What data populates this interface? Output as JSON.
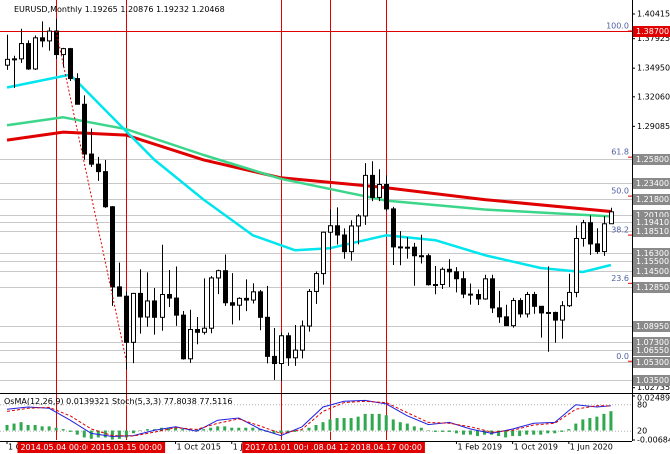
{
  "chart_data": {
    "type": "candlestick",
    "symbol": "EURUSD,Monthly",
    "x": [
      "2013-10",
      "2013-11",
      "2013-12",
      "2014-01",
      "2014-02",
      "2014-03",
      "2014-04",
      "2014-05",
      "2014-06",
      "2014-07",
      "2014-08",
      "2014-09",
      "2014-10",
      "2014-11",
      "2014-12",
      "2015-01",
      "2015-02",
      "2015-03",
      "2015-04",
      "2015-05",
      "2015-06",
      "2015-07",
      "2015-08",
      "2015-09",
      "2015-10",
      "2015-11",
      "2015-12",
      "2016-01",
      "2016-02",
      "2016-03",
      "2016-04",
      "2016-05",
      "2016-06",
      "2016-07",
      "2016-08",
      "2016-09",
      "2016-10",
      "2016-11",
      "2016-12",
      "2017-01",
      "2017-02",
      "2017-03",
      "2017-04",
      "2017-05",
      "2017-06",
      "2017-07",
      "2017-08",
      "2017-09",
      "2017-10",
      "2017-11",
      "2017-12",
      "2018-01",
      "2018-02",
      "2018-03",
      "2018-04",
      "2018-05",
      "2018-06",
      "2018-07",
      "2018-08",
      "2018-09",
      "2018-10",
      "2018-11",
      "2018-12",
      "2019-01",
      "2019-02",
      "2019-03",
      "2019-04",
      "2019-05",
      "2019-06",
      "2019-07",
      "2019-08",
      "2019-09",
      "2019-10",
      "2019-11",
      "2019-12",
      "2020-01",
      "2020-02",
      "2020-03",
      "2020-04",
      "2020-05",
      "2020-06",
      "2020-07",
      "2020-08",
      "2020-09",
      "2020-10",
      "2020-11",
      "2020-12"
    ],
    "candles": {
      "open": [
        1.3525,
        1.3584,
        1.3589,
        1.3743,
        1.3487,
        1.3801,
        1.377,
        1.3869,
        1.3632,
        1.3692,
        1.339,
        1.3131,
        1.2629,
        1.2527,
        1.2452,
        1.2098,
        1.129,
        1.1196,
        1.0731,
        1.1224,
        1.0986,
        1.1148,
        1.0983,
        1.1213,
        1.1177,
        1.1005,
        1.0565,
        1.086,
        1.0832,
        1.0873,
        1.138,
        1.1453,
        1.113,
        1.1105,
        1.1174,
        1.1157,
        1.124,
        1.0983,
        1.0589,
        1.0517,
        1.0797,
        1.0575,
        1.0652,
        1.0895,
        1.1244,
        1.1424,
        1.1841,
        1.1906,
        1.1813,
        1.1645,
        1.1904,
        1.2005,
        1.2414,
        1.2192,
        1.2322,
        1.2076,
        1.1693,
        1.1683,
        1.169,
        1.1604,
        1.1604,
        1.1312,
        1.1314,
        1.1467,
        1.1442,
        1.1372,
        1.1217,
        1.1213,
        1.1168,
        1.1371,
        1.1078,
        1.0988,
        1.0899,
        1.1152,
        1.1017,
        1.1213,
        1.1094,
        1.1027,
        1.1032,
        1.0955,
        1.11,
        1.1234,
        1.1778,
        1.1937,
        1.1723,
        1.1646,
        1.19265
      ],
      "high": [
        1.3832,
        1.362,
        1.3893,
        1.3775,
        1.3824,
        1.3967,
        1.3906,
        1.3993,
        1.37,
        1.37,
        1.3444,
        1.3221,
        1.2887,
        1.26,
        1.257,
        1.2104,
        1.1534,
        1.1244,
        1.1229,
        1.1467,
        1.1436,
        1.1278,
        1.1714,
        1.146,
        1.1495,
        1.1047,
        1.1059,
        1.0986,
        1.1376,
        1.1398,
        1.1464,
        1.1616,
        1.1428,
        1.1185,
        1.1366,
        1.1327,
        1.1258,
        1.13,
        1.0875,
        1.0829,
        1.0829,
        1.0906,
        1.0951,
        1.1268,
        1.1445,
        1.1846,
        1.207,
        1.2092,
        1.188,
        1.1961,
        1.2023,
        1.2537,
        1.2556,
        1.2476,
        1.2414,
        1.2097,
        1.1852,
        1.1791,
        1.1734,
        1.1815,
        1.1625,
        1.15,
        1.1486,
        1.157,
        1.1489,
        1.1448,
        1.1324,
        1.1264,
        1.1412,
        1.1412,
        1.125,
        1.111,
        1.1179,
        1.1176,
        1.1239,
        1.1239,
        1.1095,
        1.1496,
        1.104,
        1.1146,
        1.1422,
        1.1909,
        1.1966,
        1.2011,
        1.1881,
        1.2004,
        1.20876
      ],
      "low": [
        1.3478,
        1.3296,
        1.3548,
        1.3478,
        1.3477,
        1.3706,
        1.3672,
        1.3588,
        1.3503,
        1.3366,
        1.3131,
        1.2571,
        1.25,
        1.2358,
        1.2087,
        1.1098,
        1.1262,
        1.0458,
        1.0521,
        1.0819,
        1.0888,
        1.0809,
        1.0847,
        1.1087,
        1.0897,
        1.0557,
        1.0524,
        1.0711,
        1.081,
        1.0822,
        1.1217,
        1.1098,
        1.0912,
        1.0952,
        1.1046,
        1.1122,
        1.0852,
        1.0518,
        1.0352,
        1.0341,
        1.0494,
        1.0494,
        1.0569,
        1.0839,
        1.1119,
        1.1312,
        1.1662,
        1.1717,
        1.1574,
        1.1554,
        1.1718,
        1.1915,
        1.2154,
        1.2155,
        1.2055,
        1.151,
        1.1508,
        1.1575,
        1.1301,
        1.1526,
        1.1302,
        1.1216,
        1.1269,
        1.1289,
        1.1234,
        1.1176,
        1.1111,
        1.1107,
        1.116,
        1.1027,
        1.0927,
        1.0905,
        1.0879,
        1.0981,
        1.0981,
        1.1019,
        1.0778,
        1.0636,
        1.0727,
        1.0767,
        1.1087,
        1.1185,
        1.1696,
        1.1612,
        1.1622,
        1.1603,
        1.19232
      ],
      "close": [
        1.3584,
        1.3589,
        1.3743,
        1.3487,
        1.3801,
        1.377,
        1.3869,
        1.3632,
        1.3692,
        1.339,
        1.3131,
        1.2629,
        1.2527,
        1.2452,
        1.2098,
        1.129,
        1.1196,
        1.0731,
        1.1224,
        1.0986,
        1.1148,
        1.0983,
        1.1213,
        1.1177,
        1.1005,
        1.0565,
        1.086,
        1.0832,
        1.0873,
        1.138,
        1.1453,
        1.113,
        1.1105,
        1.1174,
        1.1157,
        1.124,
        1.0983,
        1.0589,
        1.0517,
        1.0797,
        1.0575,
        1.0652,
        1.0895,
        1.1244,
        1.1424,
        1.1841,
        1.1906,
        1.1813,
        1.1645,
        1.1904,
        1.2005,
        1.2414,
        1.2192,
        1.2322,
        1.2076,
        1.1693,
        1.1683,
        1.169,
        1.1604,
        1.1604,
        1.1312,
        1.1314,
        1.1467,
        1.1442,
        1.1372,
        1.1217,
        1.1213,
        1.1168,
        1.1371,
        1.1078,
        1.0988,
        1.0899,
        1.1152,
        1.1017,
        1.1213,
        1.1094,
        1.1027,
        1.1032,
        1.0955,
        1.11,
        1.1234,
        1.1778,
        1.1937,
        1.1723,
        1.1646,
        1.1926,
        1.20468
      ]
    },
    "bull_color": "#ffffff",
    "bear_color": "#000000",
    "ylim": [
      1.023,
      1.4152
    ],
    "yticks": [
      1.40415,
      1.37925,
      {
        "value": 1.3495,
        "label": "1.34950"
      },
      {
        "value": 1.3206,
        "label": "1.32060"
      },
      1.29085,
      1.02735
    ],
    "xlim": [
      "2013-09",
      "2021-03"
    ],
    "xticks": [
      {
        "value": "2013-10",
        "label": "1 O"
      },
      {
        "value": "2015-10",
        "label": "1 Oct 2015"
      },
      {
        "value": "2016-06",
        "label": "1 J"
      },
      {
        "value": "2018-06",
        "label": "2018"
      },
      {
        "value": "2019-02",
        "label": "1 Feb 2019"
      },
      {
        "value": "2019-10",
        "label": "1 Oct 2019"
      },
      {
        "value": "2020-06",
        "label": "1 Jun 2020"
      }
    ],
    "levels": [
      {
        "value": 1.387,
        "label": "1.38700",
        "color": "#e00000"
      },
      {
        "value": 1.258,
        "label": "1.25800",
        "color": "#8a8a8a"
      },
      {
        "value": 1.234,
        "label": "1.23400",
        "color": "#8a8a8a"
      },
      {
        "value": 1.218,
        "label": "1.21800",
        "color": "#8a8a8a"
      },
      {
        "value": 1.201,
        "label": "1.20100",
        "color": "#8a8a8a"
      },
      {
        "value": 1.1941,
        "label": "1.19410",
        "color": "#8a8a8a"
      },
      {
        "value": 1.1851,
        "label": "1.18510",
        "color": "#8a8a8a"
      },
      {
        "value": 1.163,
        "label": "1.16300",
        "color": "#8a8a8a"
      },
      {
        "value": 1.155,
        "label": "1.15500",
        "color": "#8a8a8a"
      },
      {
        "value": 1.145,
        "label": "1.14500",
        "color": "#8a8a8a"
      },
      {
        "value": 1.1285,
        "label": "1.12850",
        "color": "#8a8a8a"
      },
      {
        "value": 1.0895,
        "label": "1.08950",
        "color": "#8a8a8a"
      },
      {
        "value": 1.073,
        "label": "1.07300",
        "color": "#8a8a8a"
      },
      {
        "value": 1.0655,
        "label": "1.06550",
        "color": "#8a8a8a"
      },
      {
        "value": 1.053,
        "label": "1.05300",
        "color": "#8a8a8a"
      },
      {
        "value": 1.035,
        "label": "1.03500",
        "color": "#8a8a8a"
      }
    ],
    "fibonacci": {
      "from": 1.054,
      "to": 1.387,
      "start": "2014-05",
      "end": "2015-03",
      "color": "#e00000",
      "levels": [
        {
          "value": 100,
          "label": "100.0"
        },
        61.8,
        {
          "value": 50,
          "label": "50.0"
        },
        38.2,
        23.6,
        {
          "value": 0,
          "label": "0.0"
        }
      ]
    },
    "vlines": [
      {
        "value": "2014-05",
        "label": "2014.05.04 00:00"
      },
      {
        "value": "2015-03",
        "label": "2015.03.15 00:00"
      },
      {
        "value": "2017-01",
        "label": "2017.01.01 00:00"
      },
      {
        "value": "2017-08",
        "label": ".08.04 12"
      },
      {
        "value": "2018-04",
        "label": "2018.04.17 00:00"
      }
    ],
    "vline_color": "#e00000",
    "moving_averages": [
      {
        "color": "#e00000",
        "width": 3,
        "x": [
          "2013-10",
          "2014-06",
          "2015-03",
          "2016-02",
          "2017-01",
          "2018-04",
          "2019-06",
          "2020-12"
        ],
        "values": [
          1.277,
          1.285,
          1.282,
          1.257,
          1.239,
          1.229,
          1.217,
          1.205
        ]
      },
      {
        "color": "#3cd68a",
        "width": 2.5,
        "x": [
          "2013-10",
          "2014-06",
          "2015-03",
          "2016-02",
          "2017-01",
          "2018-04",
          "2019-06",
          "2020-12"
        ],
        "values": [
          1.292,
          1.3,
          1.288,
          1.262,
          1.238,
          1.216,
          1.207,
          1.2
        ]
      },
      {
        "color": "#00e5ee",
        "width": 2.5,
        "x": [
          "2013-10",
          "2014-07",
          "2015-07",
          "2016-02",
          "2016-09",
          "2017-03",
          "2017-08",
          "2018-04",
          "2018-11",
          "2019-06",
          "2020-02",
          "2020-08",
          "2020-12"
        ],
        "values": [
          1.33,
          1.343,
          1.257,
          1.217,
          1.181,
          1.166,
          1.168,
          1.181,
          1.176,
          1.161,
          1.148,
          1.144,
          1.151
        ]
      }
    ],
    "oscillator": {
      "osma_name": "OsMA(12,26,9)",
      "osma_color": "#2fa84f",
      "osma": [
        0.004,
        0.005,
        0.006,
        0.004,
        0.004,
        0.003,
        0.003,
        0.002,
        0.001,
        -0.001,
        -0.003,
        -0.005,
        -0.006,
        -0.005,
        -0.005,
        -0.0065,
        -0.006,
        -0.005,
        -0.002,
        0,
        0.001,
        0.001,
        0.002,
        0.002,
        0.002,
        0.001,
        0.001,
        0.001,
        0.001,
        0.002,
        0.003,
        0.003,
        0.002,
        0.002,
        0.002,
        0.002,
        0.001,
        -0.001,
        -0.002,
        -0.002,
        -0.002,
        -0.001,
        0,
        0.002,
        0.004,
        0.006,
        0.008,
        0.009,
        0.009,
        0.009,
        0.01,
        0.012,
        0.012,
        0.012,
        0.011,
        0.008,
        0.006,
        0.005,
        0.003,
        0.002,
        0,
        -0.001,
        -0.001,
        -0.001,
        -0.002,
        -0.003,
        -0.003,
        -0.004,
        -0.003,
        -0.003,
        -0.004,
        -0.005,
        -0.004,
        -0.004,
        -0.003,
        -0.003,
        -0.003,
        -0.002,
        -0.002,
        -0.001,
        0.001,
        0.005,
        0.008,
        0.009,
        0.01,
        0.012,
        0.0139321
      ],
      "y2lim": [
        -0.0068447,
        0.0248925
      ],
      "y2ticks": [
        0.0248925,
        -0.0068447
      ],
      "stoch_name": "Stoch(5,3,3)",
      "stoch_ylim": [
        0,
        100
      ],
      "stoch_yticks": [
        80,
        20
      ],
      "stoch_x": [
        "2013-10",
        "2014-01",
        "2014-04",
        "2014-07",
        "2014-10",
        "2015-01",
        "2015-04",
        "2015-07",
        "2015-10",
        "2016-01",
        "2016-04",
        "2016-07",
        "2016-10",
        "2017-01",
        "2017-04",
        "2017-07",
        "2017-10",
        "2018-01",
        "2018-04",
        "2018-07",
        "2018-10",
        "2019-01",
        "2019-04",
        "2019-07",
        "2019-10",
        "2020-01",
        "2020-04",
        "2020-07",
        "2020-10",
        "2020-12"
      ],
      "stoch_main": {
        "color": "#2020e0",
        "values": [
          70,
          75,
          72,
          45,
          15,
          8,
          10,
          22,
          30,
          20,
          45,
          50,
          25,
          10,
          30,
          75,
          88,
          90,
          82,
          55,
          35,
          40,
          25,
          15,
          25,
          38,
          40,
          80,
          75,
          77.8038
        ]
      },
      "stoch_signal": {
        "color": "#e00000",
        "values": [
          65,
          72,
          74,
          55,
          25,
          10,
          9,
          18,
          28,
          24,
          38,
          48,
          32,
          15,
          24,
          65,
          85,
          88,
          85,
          62,
          40,
          38,
          30,
          18,
          22,
          34,
          38,
          70,
          78,
          77.5116
        ]
      }
    }
  }
}
